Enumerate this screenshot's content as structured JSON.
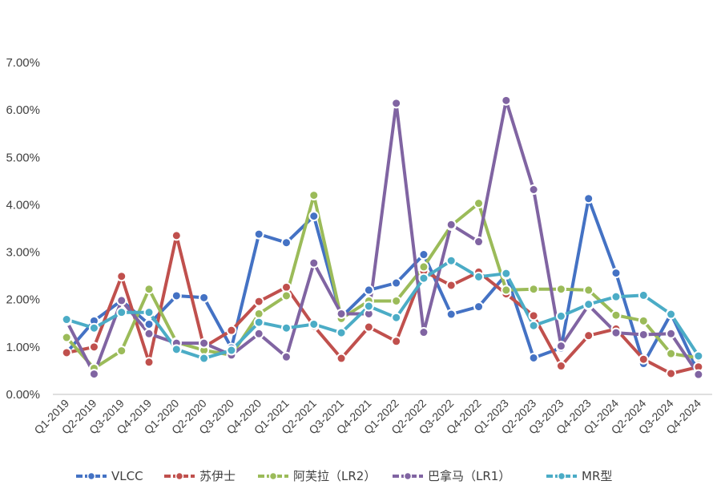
{
  "chart_data": {
    "type": "line",
    "title": "",
    "xlabel": "",
    "ylabel": "",
    "ylim": [
      0,
      7
    ],
    "y_ticks": [
      "0.00%",
      "1.00%",
      "2.00%",
      "3.00%",
      "4.00%",
      "5.00%",
      "6.00%",
      "7.00%"
    ],
    "grid": false,
    "legend_position": "bottom",
    "categories": [
      "Q1-2019",
      "Q2-2019",
      "Q3-2019",
      "Q4-2019",
      "Q1-2020",
      "Q2-2020",
      "Q3-2020",
      "Q4-2020",
      "Q1-2021",
      "Q2-2021",
      "Q3-2021",
      "Q4-2021",
      "Q1-2022",
      "Q2-2022",
      "Q3-2022",
      "Q4-2022",
      "Q1-2023",
      "Q2-2023",
      "Q3-2023",
      "Q4-2023",
      "Q1-2024",
      "Q2-2024",
      "Q3-2024",
      "Q4-2024"
    ],
    "series": [
      {
        "name": "VLCC",
        "color": "#4472C4",
        "values": [
          0.88,
          1.55,
          1.98,
          1.48,
          2.08,
          2.04,
          0.98,
          3.38,
          3.2,
          3.76,
          1.63,
          2.2,
          2.35,
          2.95,
          1.69,
          1.85,
          2.53,
          0.77,
          0.98,
          4.13,
          2.56,
          0.65,
          1.7,
          0.47
        ]
      },
      {
        "name": "苏伊士",
        "color": "#C0504D",
        "values": [
          0.88,
          1.0,
          2.49,
          0.68,
          3.35,
          1.0,
          1.35,
          1.96,
          2.26,
          1.44,
          0.76,
          1.42,
          1.12,
          2.6,
          2.3,
          2.58,
          2.12,
          1.66,
          0.6,
          1.24,
          1.38,
          0.74,
          0.44,
          0.58
        ]
      },
      {
        "name": "阿芙拉（LR2）",
        "color": "#9BBB59",
        "values": [
          1.2,
          0.55,
          0.92,
          2.22,
          1.1,
          0.93,
          0.83,
          1.7,
          2.08,
          4.2,
          1.6,
          1.97,
          1.97,
          2.69,
          3.56,
          4.03,
          2.2,
          2.22,
          2.22,
          2.2,
          1.67,
          1.55,
          0.86,
          0.77
        ]
      },
      {
        "name": "巴拿马（LR1）",
        "color": "#8064A2",
        "values": [
          1.55,
          0.43,
          1.98,
          1.28,
          1.08,
          1.08,
          0.83,
          1.28,
          0.79,
          2.77,
          1.7,
          1.7,
          6.14,
          1.31,
          3.58,
          3.22,
          6.2,
          4.32,
          1.02,
          1.88,
          1.3,
          1.26,
          1.28,
          0.42
        ]
      },
      {
        "name": "MR型",
        "color": "#4BACC6",
        "values": [
          1.58,
          1.4,
          1.73,
          1.73,
          0.95,
          0.76,
          0.93,
          1.52,
          1.4,
          1.48,
          1.3,
          1.86,
          1.62,
          2.45,
          2.82,
          2.48,
          2.55,
          1.45,
          1.65,
          1.9,
          2.06,
          2.09,
          1.69,
          0.81
        ]
      }
    ]
  }
}
